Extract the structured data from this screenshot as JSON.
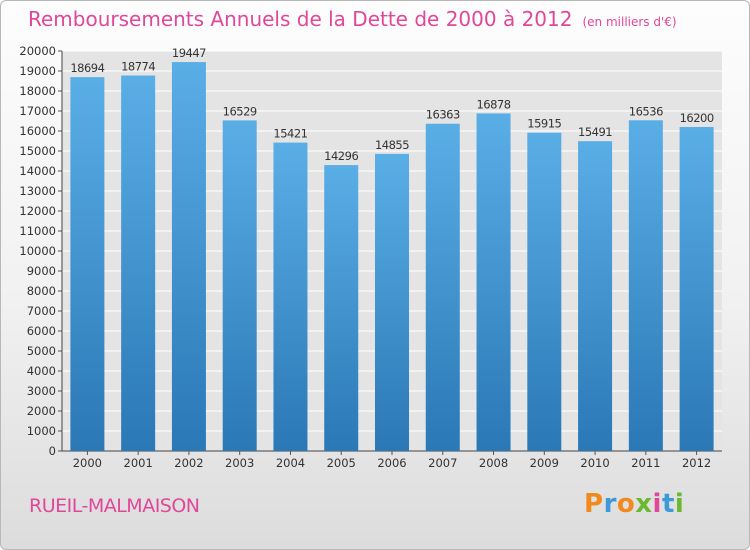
{
  "title": "Remboursements Annuels de la Dette de 2000 à 2012",
  "unit_note": "(en milliers d'€)",
  "city": "RUEIL-MALMAISON",
  "brand": "Proxiti",
  "colors": {
    "title": "#e0479a",
    "bar_top": "#5aaee6",
    "bar_bottom": "#2a78b6",
    "logo_letters": [
      "#f08a1c",
      "#3c9ad8",
      "#f08a1c",
      "#6ab82e",
      "#e0479a",
      "#3c9ad8",
      "#6ab82e"
    ]
  },
  "chart_data": {
    "type": "bar",
    "categories": [
      "2000",
      "2001",
      "2002",
      "2003",
      "2004",
      "2005",
      "2006",
      "2007",
      "2008",
      "2009",
      "2010",
      "2011",
      "2012"
    ],
    "values": [
      18694,
      18774,
      19447,
      16529,
      15421,
      14296,
      14855,
      16363,
      16878,
      15915,
      15491,
      16536,
      16200
    ],
    "ylim": [
      0,
      20000
    ],
    "ytick_step": 1000,
    "grid": true,
    "xlabel": "",
    "ylabel": ""
  }
}
